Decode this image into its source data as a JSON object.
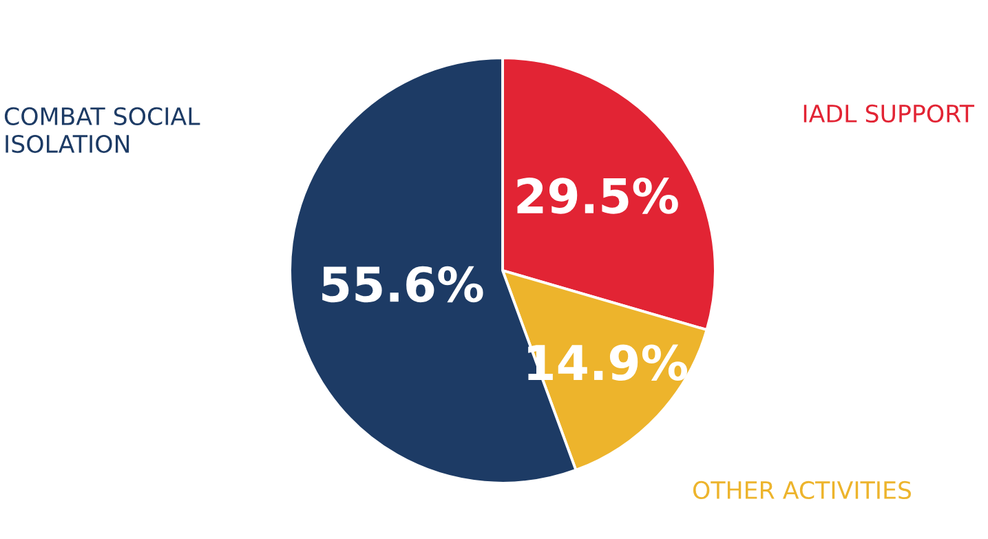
{
  "chart_data": {
    "type": "pie",
    "categories": [
      "IADL SUPPORT",
      "OTHER ACTIVITIES",
      "COMBAT SOCIAL\nISOLATION"
    ],
    "values": [
      29.5,
      14.9,
      55.6
    ],
    "colors": [
      "#e22434",
      "#edb42c",
      "#1d3b65"
    ],
    "value_labels": [
      "29.5%",
      "14.9%",
      "55.6%"
    ]
  }
}
